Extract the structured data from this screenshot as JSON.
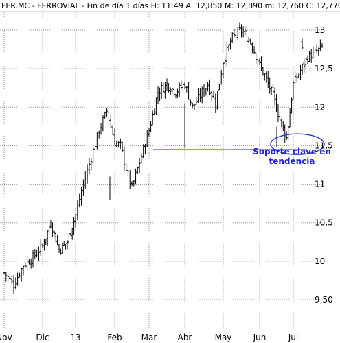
{
  "header": {
    "symbol": "FER.MC - FERROVIAL",
    "timeframe": "Fin de día 1 días",
    "H": "H: 11:49",
    "A": "A: 12,850",
    "M": "M: 12,890",
    "m": "m: 12,760",
    "C": "C: 12,770"
  },
  "colors": {
    "candles": "#000000",
    "grid": "#9a9a9a",
    "support": "#1f2fd0",
    "annotation": "#1f1fd8"
  },
  "chart_data": {
    "type": "candlestick",
    "title": "",
    "xlabel": "",
    "ylabel": "",
    "ylim": [
      9.35,
      13.1
    ],
    "grid": true,
    "y_ticks": [
      {
        "value": 13,
        "label": "13"
      },
      {
        "value": 12.5,
        "label": "12,5"
      },
      {
        "value": 12,
        "label": "12"
      },
      {
        "value": 11.5,
        "label": "11,5"
      },
      {
        "value": 11,
        "label": "11"
      },
      {
        "value": 10.5,
        "label": "10,5"
      },
      {
        "value": 10,
        "label": "10"
      },
      {
        "value": 9.5,
        "label": "9,50"
      }
    ],
    "x_ticks": [
      "Nov",
      "Dic",
      "13",
      "Feb",
      "Mar",
      "Abr",
      "May",
      "Jun",
      "Jul"
    ],
    "last_bar": {
      "open": 12.85,
      "high": 12.89,
      "low": 12.76,
      "close": 12.77
    },
    "close_path": [
      [
        "Nov",
        9.85
      ],
      [
        "Nov",
        9.7
      ],
      [
        "Nov",
        9.95
      ],
      [
        "Nov",
        10.05
      ],
      [
        "Dic",
        10.2
      ],
      [
        "Dic",
        10.5
      ],
      [
        "Dic",
        10.15
      ],
      [
        "Dic",
        10.25
      ],
      [
        "13",
        10.6
      ],
      [
        "13",
        11.0
      ],
      [
        "13",
        11.35
      ],
      [
        "13",
        11.7
      ],
      [
        "13",
        11.95
      ],
      [
        "Feb",
        11.55
      ],
      [
        "Feb",
        11.5
      ],
      [
        "Feb",
        11.2
      ],
      [
        "Feb",
        10.95
      ],
      [
        "Feb",
        11.2
      ],
      [
        "Feb",
        11.45
      ],
      [
        "Mar",
        11.7
      ],
      [
        "Mar",
        12.2
      ],
      [
        "Mar",
        12.3
      ],
      [
        "Mar",
        12.2
      ],
      [
        "Abr",
        12.3
      ],
      [
        "Abr",
        12.0
      ],
      [
        "Abr",
        12.15
      ],
      [
        "Abr",
        12.3
      ],
      [
        "Abr",
        12.05
      ],
      [
        "May",
        12.6
      ],
      [
        "May",
        12.9
      ],
      [
        "May",
        13.0
      ],
      [
        "May",
        12.85
      ],
      [
        "Jun",
        12.55
      ],
      [
        "Jun",
        12.35
      ],
      [
        "Jun",
        12.15
      ],
      [
        "Jun",
        11.85
      ],
      [
        "Jun",
        11.6
      ],
      [
        "Jul",
        12.3
      ],
      [
        "Jul",
        12.65
      ],
      [
        "Jul",
        12.77
      ]
    ],
    "support": {
      "value": 11.45,
      "from": "Mar",
      "to": "Jul"
    },
    "annotation": {
      "line1": "Soporte clave en",
      "line2": "tendencia"
    }
  }
}
